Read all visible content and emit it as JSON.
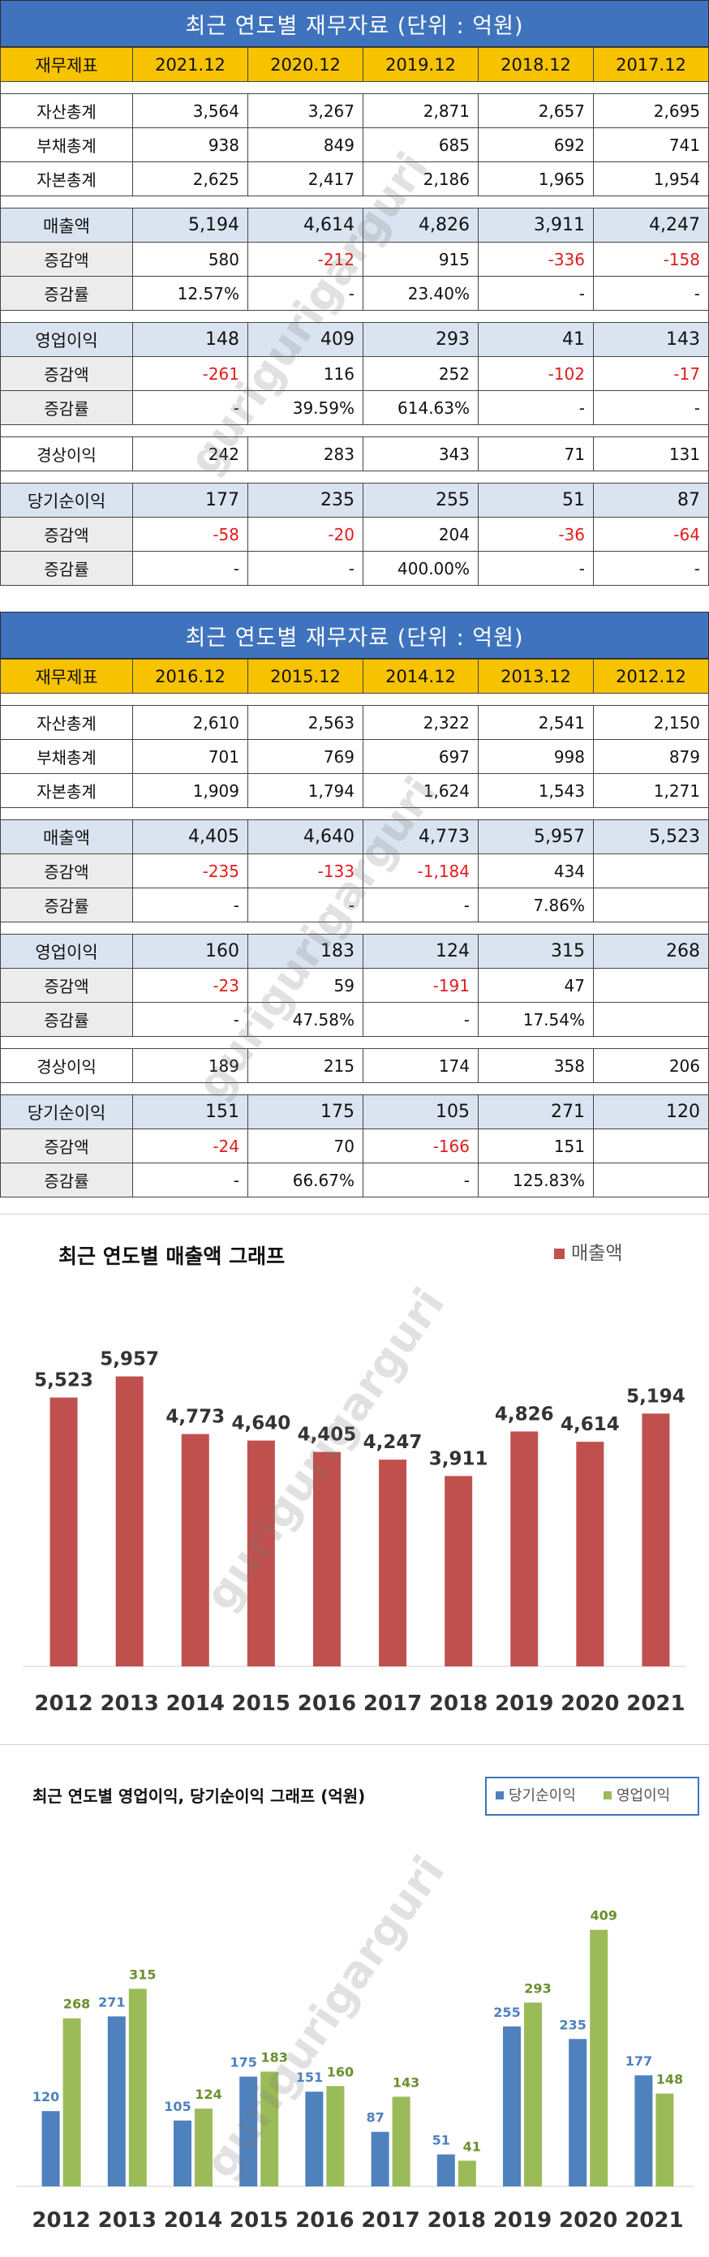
{
  "watermark": "gurigurigarguri",
  "tables": [
    {
      "title": "최근 연도별 재무자료 (단위 : 억원)",
      "header_label": "재무제표",
      "years": [
        "2021.12",
        "2020.12",
        "2019.12",
        "2018.12",
        "2017.12"
      ],
      "groups": [
        {
          "rows": [
            {
              "label": "자산총계",
              "values": [
                "3,564",
                "3,267",
                "2,871",
                "2,657",
                "2,695"
              ]
            },
            {
              "label": "부채총계",
              "values": [
                "938",
                "849",
                "685",
                "692",
                "741"
              ]
            },
            {
              "label": "자본총계",
              "values": [
                "2,625",
                "2,417",
                "2,186",
                "1,965",
                "1,954"
              ]
            }
          ],
          "style": "plain"
        },
        {
          "rows": [
            {
              "label": "매출액",
              "values": [
                "5,194",
                "4,614",
                "4,826",
                "3,911",
                "4,247"
              ]
            },
            {
              "label": "증감액",
              "values": [
                "580",
                "-212",
                "915",
                "-336",
                "-158"
              ]
            },
            {
              "label": "증감률",
              "values": [
                "12.57%",
                "-",
                "23.40%",
                "-",
                "-"
              ]
            }
          ],
          "style": "metric"
        },
        {
          "rows": [
            {
              "label": "영업이익",
              "values": [
                "148",
                "409",
                "293",
                "41",
                "143"
              ]
            },
            {
              "label": "증감액",
              "values": [
                "-261",
                "116",
                "252",
                "-102",
                "-17"
              ]
            },
            {
              "label": "증감률",
              "values": [
                "-",
                "39.59%",
                "614.63%",
                "-",
                "-"
              ]
            }
          ],
          "style": "metric"
        },
        {
          "rows": [
            {
              "label": "경상이익",
              "values": [
                "242",
                "283",
                "343",
                "71",
                "131"
              ]
            }
          ],
          "style": "plain"
        },
        {
          "rows": [
            {
              "label": "당기순이익",
              "values": [
                "177",
                "235",
                "255",
                "51",
                "87"
              ]
            },
            {
              "label": "증감액",
              "values": [
                "-58",
                "-20",
                "204",
                "-36",
                "-64"
              ]
            },
            {
              "label": "증감률",
              "values": [
                "-",
                "-",
                "400.00%",
                "-",
                "-"
              ]
            }
          ],
          "style": "metric"
        }
      ]
    },
    {
      "title": "최근 연도별 재무자료 (단위 : 억원)",
      "header_label": "재무제표",
      "years": [
        "2016.12",
        "2015.12",
        "2014.12",
        "2013.12",
        "2012.12"
      ],
      "groups": [
        {
          "rows": [
            {
              "label": "자산총계",
              "values": [
                "2,610",
                "2,563",
                "2,322",
                "2,541",
                "2,150"
              ]
            },
            {
              "label": "부채총계",
              "values": [
                "701",
                "769",
                "697",
                "998",
                "879"
              ]
            },
            {
              "label": "자본총계",
              "values": [
                "1,909",
                "1,794",
                "1,624",
                "1,543",
                "1,271"
              ]
            }
          ],
          "style": "plain"
        },
        {
          "rows": [
            {
              "label": "매출액",
              "values": [
                "4,405",
                "4,640",
                "4,773",
                "5,957",
                "5,523"
              ]
            },
            {
              "label": "증감액",
              "values": [
                "-235",
                "-133",
                "-1,184",
                "434",
                ""
              ]
            },
            {
              "label": "증감률",
              "values": [
                "-",
                "-",
                "-",
                "7.86%",
                ""
              ]
            }
          ],
          "style": "metric"
        },
        {
          "rows": [
            {
              "label": "영업이익",
              "values": [
                "160",
                "183",
                "124",
                "315",
                "268"
              ]
            },
            {
              "label": "증감액",
              "values": [
                "-23",
                "59",
                "-191",
                "47",
                ""
              ]
            },
            {
              "label": "증감률",
              "values": [
                "-",
                "47.58%",
                "-",
                "17.54%",
                ""
              ]
            }
          ],
          "style": "metric"
        },
        {
          "rows": [
            {
              "label": "경상이익",
              "values": [
                "189",
                "215",
                "174",
                "358",
                "206"
              ]
            }
          ],
          "style": "plain"
        },
        {
          "rows": [
            {
              "label": "당기순이익",
              "values": [
                "151",
                "175",
                "105",
                "271",
                "120"
              ]
            },
            {
              "label": "증감액",
              "values": [
                "-24",
                "70",
                "-166",
                "151",
                ""
              ]
            },
            {
              "label": "증감률",
              "values": [
                "-",
                "66.67%",
                "-",
                "125.83%",
                ""
              ]
            }
          ],
          "style": "metric"
        }
      ]
    }
  ],
  "colors": {
    "title_bar": "#3f73bd",
    "header_row": "#f7c200",
    "metric_row": "#dae4f1",
    "negative": "#e21b1b",
    "sales_bar": "#c0504d",
    "net_income_bar": "#4f81bd",
    "operating_bar": "#9bbb59"
  },
  "chart_data": [
    {
      "type": "bar",
      "title": "최근 연도별 매출액 그래프",
      "categories": [
        "2012",
        "2013",
        "2014",
        "2015",
        "2016",
        "2017",
        "2018",
        "2019",
        "2020",
        "2021"
      ],
      "series": [
        {
          "name": "매출액",
          "values": [
            5523,
            5957,
            4773,
            4640,
            4405,
            4247,
            3911,
            4826,
            4614,
            5194
          ]
        }
      ],
      "value_labels": [
        "5,523",
        "5,957",
        "4,773",
        "4,640",
        "4,405",
        "4,247",
        "3,911",
        "4,826",
        "4,614",
        "5,194"
      ],
      "legend": "top-right",
      "ylim": [
        0,
        7000
      ],
      "grid": false
    },
    {
      "type": "bar",
      "title": "최근 연도별 영업이익, 당기순이익 그래프 (억원)",
      "categories": [
        "2012",
        "2013",
        "2014",
        "2015",
        "2016",
        "2017",
        "2018",
        "2019",
        "2020",
        "2021"
      ],
      "series": [
        {
          "name": "당기순이익",
          "values": [
            120,
            271,
            105,
            175,
            151,
            87,
            51,
            255,
            235,
            177
          ]
        },
        {
          "name": "영업이익",
          "values": [
            268,
            315,
            124,
            183,
            160,
            143,
            41,
            293,
            409,
            148
          ]
        }
      ],
      "legend": "top-right",
      "ylim": [
        0,
        450
      ],
      "grid": false
    }
  ]
}
